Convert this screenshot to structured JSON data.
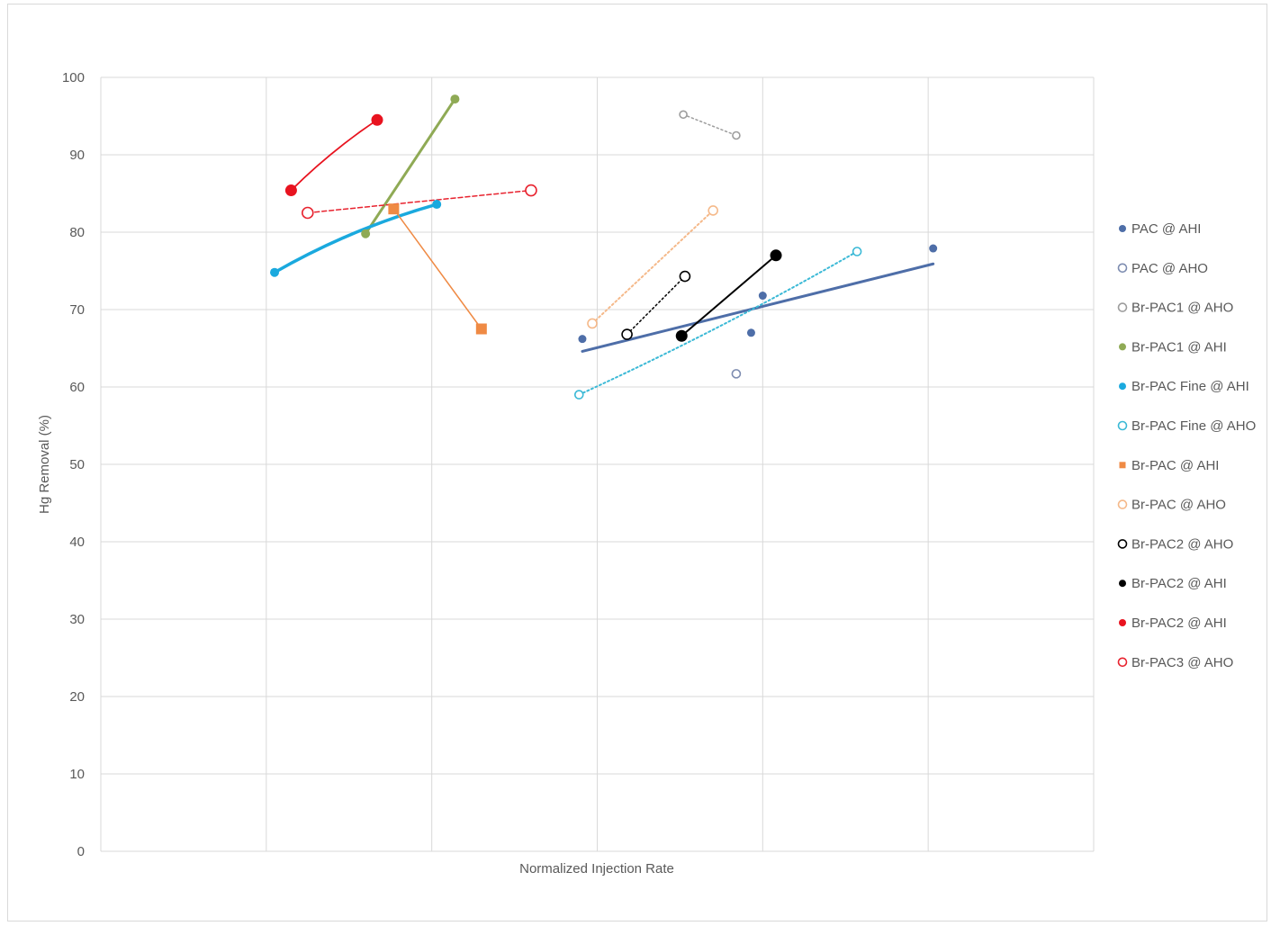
{
  "chart_data": {
    "type": "scatter",
    "title": "",
    "xlabel": "Normalized Injection Rate",
    "ylabel": "Hg Removal (%)",
    "xlim": [
      0,
      6
    ],
    "ylim": [
      0,
      100
    ],
    "yticks": [
      0,
      10,
      20,
      30,
      40,
      50,
      60,
      70,
      80,
      90,
      100
    ],
    "xgrid": [
      0,
      1,
      2,
      3,
      4,
      5,
      6
    ],
    "grid": true,
    "legend_position": "right",
    "series": [
      {
        "name": "PAC @ AHI",
        "color": "#4e6ea8",
        "marker": "filled",
        "size": 4.5,
        "points": [
          [
            2.91,
            66.2
          ],
          [
            3.93,
            67.0
          ],
          [
            4.0,
            71.8
          ],
          [
            5.03,
            77.9
          ]
        ],
        "trendline": {
          "points": [
            [
              2.91,
              64.6
            ],
            [
              5.03,
              75.9
            ]
          ],
          "dash": "solid",
          "width": 3
        }
      },
      {
        "name": "PAC @ AHO",
        "color": "#7d8cb0",
        "marker": "open",
        "size": 4.5,
        "points": [
          [
            3.84,
            61.7
          ]
        ]
      },
      {
        "name": "Br-PAC1 @ AHO",
        "color": "#9d9d9d",
        "marker": "open",
        "size": 4,
        "points": [
          [
            3.52,
            95.2
          ],
          [
            3.84,
            92.5
          ]
        ],
        "trendline": {
          "points": [
            [
              3.52,
              95.2
            ],
            [
              3.84,
              92.5
            ]
          ],
          "dash": "dot",
          "width": 1.5
        }
      },
      {
        "name": "Br-PAC1 @ AHI",
        "color": "#8faa55",
        "marker": "filled",
        "size": 5,
        "points": [
          [
            1.6,
            79.8
          ],
          [
            2.14,
            97.2
          ]
        ],
        "trendline": {
          "points": [
            [
              1.6,
              79.8
            ],
            [
              2.14,
              97.2
            ]
          ],
          "dash": "solid",
          "width": 3
        }
      },
      {
        "name": "Br-PAC Fine @ AHI",
        "color": "#1aa9de",
        "marker": "filled",
        "size": 5,
        "points": [
          [
            1.05,
            74.8
          ],
          [
            2.03,
            83.6
          ]
        ],
        "trendline": {
          "points": [
            [
              1.05,
              74.8
            ],
            [
              2.03,
              83.6
            ]
          ],
          "dash": "solid",
          "width": 3.5,
          "curve": -12
        }
      },
      {
        "name": "Br-PAC Fine @ AHO",
        "color": "#3bb9d6",
        "marker": "open",
        "size": 4.5,
        "points": [
          [
            2.89,
            59.0
          ],
          [
            4.57,
            77.5
          ]
        ],
        "trendline": {
          "points": [
            [
              2.89,
              59.0
            ],
            [
              4.57,
              77.5
            ]
          ],
          "dash": "dot",
          "width": 2,
          "curve": 8
        }
      },
      {
        "name": "Br-PAC @ AHI",
        "color": "#ef8a44",
        "marker": "filled-square",
        "size": 6,
        "points": [
          [
            1.77,
            83.0
          ],
          [
            2.3,
            67.5
          ]
        ],
        "trendline": {
          "points": [
            [
              1.77,
              83.0
            ],
            [
              2.3,
              67.5
            ]
          ],
          "dash": "solid",
          "width": 1.5
        }
      },
      {
        "name": "Br-PAC @ AHO",
        "color": "#f5b98a",
        "marker": "open",
        "size": 5,
        "points": [
          [
            2.97,
            68.2
          ],
          [
            3.7,
            82.8
          ]
        ],
        "trendline": {
          "points": [
            [
              2.97,
              68.2
            ],
            [
              3.7,
              82.8
            ]
          ],
          "dash": "dot",
          "width": 2
        }
      },
      {
        "name": "Br-PAC2 @ AHO",
        "color": "#000000",
        "marker": "open",
        "size": 5.5,
        "points": [
          [
            3.18,
            66.8
          ],
          [
            3.53,
            74.3
          ]
        ],
        "trendline": {
          "points": [
            [
              3.18,
              66.8
            ],
            [
              3.53,
              74.3
            ]
          ],
          "dash": "dot",
          "width": 1.5
        }
      },
      {
        "name": "Br-PAC2 @ AHI",
        "color": "#000000",
        "marker": "filled",
        "size": 6.5,
        "points": [
          [
            3.51,
            66.6
          ],
          [
            4.08,
            77.0
          ]
        ],
        "trendline": {
          "points": [
            [
              3.51,
              66.6
            ],
            [
              4.08,
              77.0
            ]
          ],
          "dash": "solid",
          "width": 2
        }
      },
      {
        "name": "Br-PAC2 @ AHI",
        "color": "#e8131f",
        "marker": "filled",
        "size": 6.5,
        "points": [
          [
            1.15,
            85.4
          ],
          [
            1.67,
            94.5
          ]
        ],
        "trendline": {
          "points": [
            [
              1.15,
              85.4
            ],
            [
              1.67,
              94.5
            ]
          ],
          "dash": "solid",
          "width": 1.8,
          "curve": -6
        }
      },
      {
        "name": "Br-PAC3 @ AHO",
        "color": "#e8232f",
        "marker": "open",
        "size": 6,
        "points": [
          [
            1.25,
            82.5
          ],
          [
            2.6,
            85.4
          ]
        ],
        "trendline": {
          "points": [
            [
              1.25,
              82.5
            ],
            [
              2.6,
              85.4
            ]
          ],
          "dash": "dash",
          "width": 1.5
        }
      }
    ]
  }
}
